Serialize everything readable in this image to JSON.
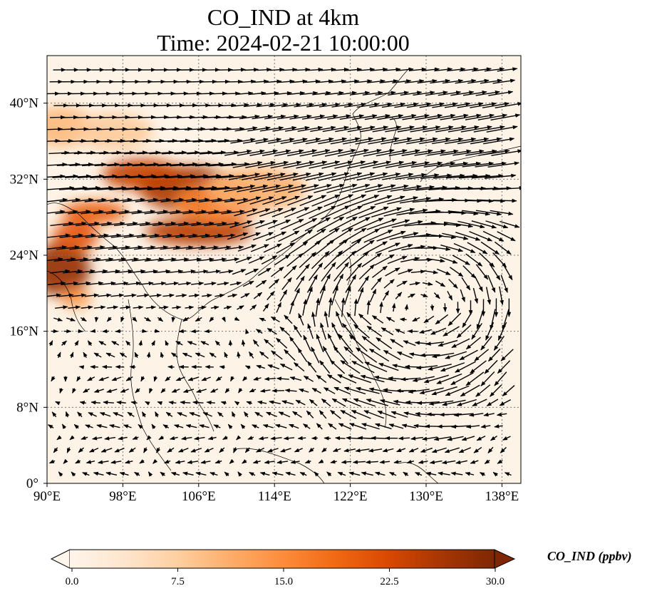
{
  "title_line1": "CO_IND at 4km",
  "title_line2": "Time: 2024-02-21 10:00:00",
  "chart_data": {
    "type": "heatmap",
    "variable": "CO_IND",
    "colorbar_label": "CO_IND (ppbv)",
    "colorbar_ticks": [
      "0.0",
      "7.5",
      "15.0",
      "22.5",
      "30.0"
    ],
    "colorbar_range": [
      0,
      30
    ],
    "colormap": [
      "#fff5eb",
      "#fee6ce",
      "#fdd0a2",
      "#fdae6b",
      "#fd8d3c",
      "#f16913",
      "#d94801",
      "#a63603",
      "#7f2704"
    ],
    "extend": "both",
    "lon_range": [
      90,
      140
    ],
    "lat_range": [
      0,
      45
    ],
    "lon_ticks": [
      {
        "value": 90,
        "label": "90°E"
      },
      {
        "value": 98,
        "label": "98°E"
      },
      {
        "value": 106,
        "label": "106°E"
      },
      {
        "value": 114,
        "label": "114°E"
      },
      {
        "value": 122,
        "label": "122°E"
      },
      {
        "value": 130,
        "label": "130°E"
      },
      {
        "value": 138,
        "label": "138°E"
      }
    ],
    "lat_ticks": [
      {
        "value": 0,
        "label": "0°"
      },
      {
        "value": 8,
        "label": "8°N"
      },
      {
        "value": 16,
        "label": "16°N"
      },
      {
        "value": 24,
        "label": "24°N"
      },
      {
        "value": 32,
        "label": "32°N"
      },
      {
        "value": 40,
        "label": "40°N"
      }
    ],
    "gridlines": "dotted",
    "wind_vectors": true,
    "plumes": [
      {
        "lon": 105,
        "lat": 31,
        "value": 26
      },
      {
        "lon": 100,
        "lat": 32.5,
        "value": 24
      },
      {
        "lon": 106,
        "lat": 26.5,
        "value": 25
      },
      {
        "lon": 91.5,
        "lat": 22.5,
        "value": 28
      },
      {
        "lon": 95,
        "lat": 28.5,
        "value": 20
      },
      {
        "lon": 93,
        "lat": 26,
        "value": 21
      },
      {
        "lon": 108,
        "lat": 29.5,
        "value": 16
      },
      {
        "lon": 112,
        "lat": 31,
        "value": 11
      },
      {
        "lon": 91.5,
        "lat": 37.5,
        "value": 10
      },
      {
        "lon": 97,
        "lat": 37,
        "value": 8
      },
      {
        "lon": 93,
        "lat": 19.5,
        "value": 14
      }
    ]
  }
}
